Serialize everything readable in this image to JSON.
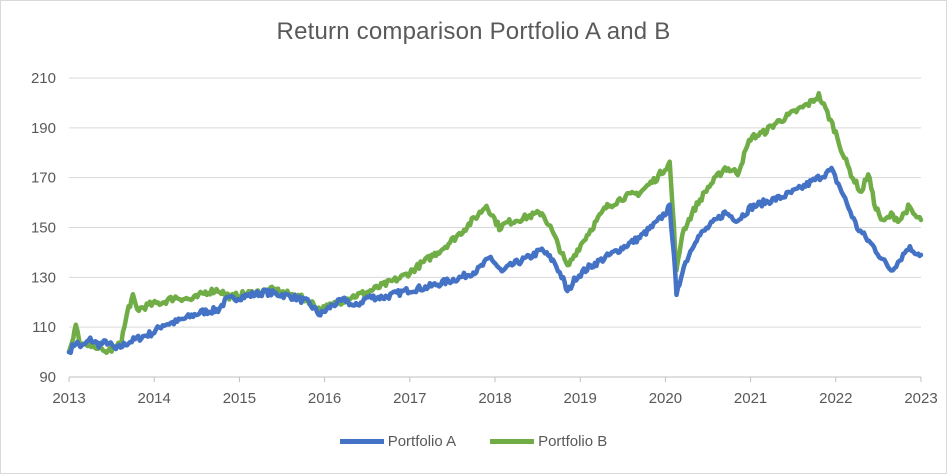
{
  "chart_data": {
    "type": "line",
    "title": "Return comparison Portfolio A and B",
    "xlabel": "",
    "ylabel": "",
    "x_tick_labels": [
      "2013",
      "2014",
      "2015",
      "2016",
      "2017",
      "2018",
      "2019",
      "2020",
      "2021",
      "2022",
      "2023"
    ],
    "xlim": [
      2013,
      2023
    ],
    "y_tick_labels": [
      "90",
      "110",
      "130",
      "150",
      "170",
      "190",
      "210"
    ],
    "ylim": [
      90,
      210
    ],
    "gridlines": true,
    "legend_position": "bottom",
    "series": [
      {
        "name": "Portfolio A",
        "color": "#4472c4",
        "points": [
          [
            2013.0,
            100
          ],
          [
            2013.08,
            104
          ],
          [
            2013.15,
            102
          ],
          [
            2013.25,
            105
          ],
          [
            2013.35,
            103
          ],
          [
            2013.45,
            104
          ],
          [
            2013.55,
            101
          ],
          [
            2013.7,
            104
          ],
          [
            2013.85,
            106
          ],
          [
            2014.0,
            108
          ],
          [
            2014.1,
            111
          ],
          [
            2014.25,
            112
          ],
          [
            2014.4,
            114
          ],
          [
            2014.55,
            116
          ],
          [
            2014.75,
            117
          ],
          [
            2014.85,
            121
          ],
          [
            2015.0,
            122
          ],
          [
            2015.15,
            123
          ],
          [
            2015.3,
            124
          ],
          [
            2015.5,
            123
          ],
          [
            2015.65,
            122
          ],
          [
            2015.8,
            120
          ],
          [
            2015.95,
            115
          ],
          [
            2016.1,
            119
          ],
          [
            2016.25,
            121
          ],
          [
            2016.35,
            118
          ],
          [
            2016.5,
            122
          ],
          [
            2016.7,
            122
          ],
          [
            2016.9,
            124
          ],
          [
            2017.0,
            125
          ],
          [
            2017.2,
            126
          ],
          [
            2017.4,
            128
          ],
          [
            2017.6,
            130
          ],
          [
            2017.8,
            133
          ],
          [
            2017.95,
            138
          ],
          [
            2018.08,
            132
          ],
          [
            2018.2,
            135
          ],
          [
            2018.4,
            138
          ],
          [
            2018.55,
            141
          ],
          [
            2018.7,
            136
          ],
          [
            2018.8,
            129
          ],
          [
            2018.85,
            124
          ],
          [
            2018.95,
            130
          ],
          [
            2019.1,
            134
          ],
          [
            2019.3,
            138
          ],
          [
            2019.5,
            142
          ],
          [
            2019.7,
            146
          ],
          [
            2019.9,
            152
          ],
          [
            2020.05,
            158
          ],
          [
            2020.1,
            140
          ],
          [
            2020.13,
            122
          ],
          [
            2020.2,
            133
          ],
          [
            2020.35,
            145
          ],
          [
            2020.5,
            150
          ],
          [
            2020.7,
            156
          ],
          [
            2020.85,
            153
          ],
          [
            2021.0,
            158
          ],
          [
            2021.15,
            160
          ],
          [
            2021.35,
            162
          ],
          [
            2021.55,
            165
          ],
          [
            2021.7,
            168
          ],
          [
            2021.85,
            171
          ],
          [
            2021.95,
            173
          ],
          [
            2022.05,
            166
          ],
          [
            2022.15,
            158
          ],
          [
            2022.25,
            150
          ],
          [
            2022.35,
            146
          ],
          [
            2022.45,
            142
          ],
          [
            2022.55,
            137
          ],
          [
            2022.65,
            133
          ],
          [
            2022.75,
            137
          ],
          [
            2022.85,
            142
          ],
          [
            2022.95,
            140
          ],
          [
            2023.0,
            139
          ]
        ]
      },
      {
        "name": "Portfolio B",
        "color": "#70ad47",
        "points": [
          [
            2013.0,
            100
          ],
          [
            2013.05,
            105
          ],
          [
            2013.08,
            111
          ],
          [
            2013.12,
            104
          ],
          [
            2013.2,
            102
          ],
          [
            2013.3,
            103
          ],
          [
            2013.4,
            100
          ],
          [
            2013.5,
            101
          ],
          [
            2013.6,
            103
          ],
          [
            2013.65,
            110
          ],
          [
            2013.7,
            118
          ],
          [
            2013.75,
            122
          ],
          [
            2013.8,
            117
          ],
          [
            2013.95,
            119
          ],
          [
            2014.1,
            120
          ],
          [
            2014.25,
            122
          ],
          [
            2014.45,
            121
          ],
          [
            2014.6,
            124
          ],
          [
            2014.75,
            125
          ],
          [
            2014.9,
            122
          ],
          [
            2015.0,
            123
          ],
          [
            2015.2,
            124
          ],
          [
            2015.4,
            125
          ],
          [
            2015.6,
            123
          ],
          [
            2015.8,
            121
          ],
          [
            2015.95,
            117
          ],
          [
            2016.1,
            119
          ],
          [
            2016.3,
            122
          ],
          [
            2016.5,
            124
          ],
          [
            2016.7,
            127
          ],
          [
            2016.9,
            130
          ],
          [
            2017.0,
            132
          ],
          [
            2017.2,
            137
          ],
          [
            2017.4,
            142
          ],
          [
            2017.6,
            148
          ],
          [
            2017.8,
            155
          ],
          [
            2017.9,
            159
          ],
          [
            2018.05,
            150
          ],
          [
            2018.15,
            152
          ],
          [
            2018.35,
            154
          ],
          [
            2018.55,
            156
          ],
          [
            2018.65,
            150
          ],
          [
            2018.78,
            140
          ],
          [
            2018.85,
            134
          ],
          [
            2018.95,
            140
          ],
          [
            2019.1,
            148
          ],
          [
            2019.3,
            158
          ],
          [
            2019.5,
            162
          ],
          [
            2019.7,
            164
          ],
          [
            2019.9,
            170
          ],
          [
            2020.05,
            176
          ],
          [
            2020.1,
            150
          ],
          [
            2020.13,
            132
          ],
          [
            2020.2,
            148
          ],
          [
            2020.35,
            158
          ],
          [
            2020.5,
            166
          ],
          [
            2020.7,
            174
          ],
          [
            2020.85,
            172
          ],
          [
            2021.0,
            186
          ],
          [
            2021.15,
            188
          ],
          [
            2021.3,
            192
          ],
          [
            2021.5,
            196
          ],
          [
            2021.7,
            200
          ],
          [
            2021.8,
            203
          ],
          [
            2021.9,
            196
          ],
          [
            2022.0,
            188
          ],
          [
            2022.1,
            178
          ],
          [
            2022.2,
            170
          ],
          [
            2022.3,
            164
          ],
          [
            2022.38,
            172
          ],
          [
            2022.45,
            160
          ],
          [
            2022.55,
            152
          ],
          [
            2022.65,
            155
          ],
          [
            2022.75,
            153
          ],
          [
            2022.85,
            158
          ],
          [
            2022.95,
            154
          ],
          [
            2023.0,
            153
          ]
        ]
      }
    ]
  }
}
